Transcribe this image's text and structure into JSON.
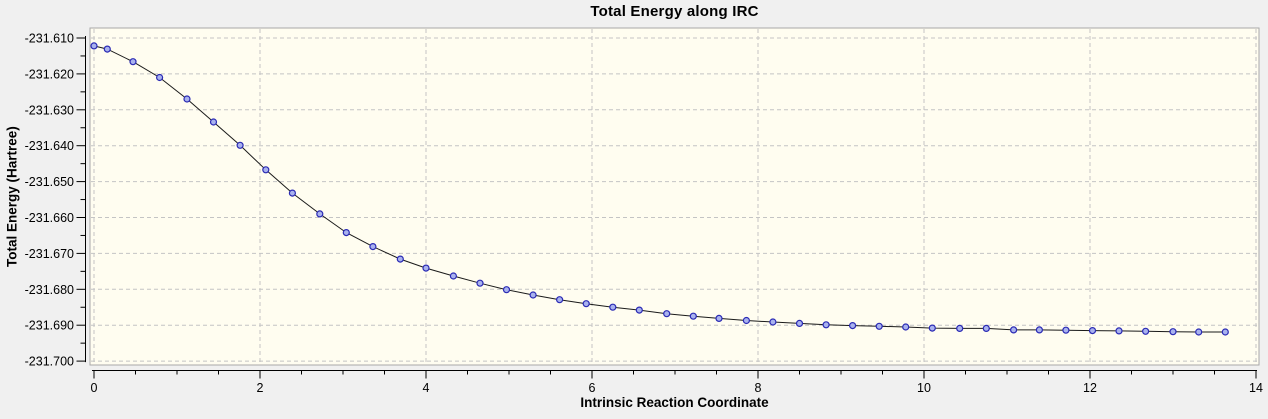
{
  "chart_data": {
    "type": "line",
    "title": "Total Energy along IRC",
    "xlabel": "Intrinsic Reaction Coordinate",
    "ylabel": "Total Energy (Hartree)",
    "x": [
      0.0,
      0.16,
      0.47,
      0.79,
      1.12,
      1.44,
      1.76,
      2.07,
      2.39,
      2.72,
      3.04,
      3.36,
      3.69,
      4.0,
      4.33,
      4.65,
      4.97,
      5.29,
      5.61,
      5.93,
      6.25,
      6.57,
      6.9,
      7.22,
      7.53,
      7.86,
      8.18,
      8.5,
      8.82,
      9.14,
      9.46,
      9.78,
      10.1,
      10.43,
      10.75,
      11.08,
      11.39,
      11.71,
      12.03,
      12.35,
      12.67,
      13.0,
      13.31,
      13.63
    ],
    "y": [
      -231.6122,
      -231.6131,
      -231.6166,
      -231.621,
      -231.627,
      -231.6334,
      -231.6399,
      -231.6467,
      -231.6532,
      -231.659,
      -231.6642,
      -231.6681,
      -231.6716,
      -231.6741,
      -231.6763,
      -231.6783,
      -231.6801,
      -231.6816,
      -231.6829,
      -231.684,
      -231.685,
      -231.6858,
      -231.6868,
      -231.6875,
      -231.6881,
      -231.6887,
      -231.6891,
      -231.6895,
      -231.6899,
      -231.6901,
      -231.6903,
      -231.6905,
      -231.6908,
      -231.6909,
      -231.6909,
      -231.6913,
      -231.6913,
      -231.6914,
      -231.6915,
      -231.6916,
      -231.6917,
      -231.6918,
      -231.6919,
      -231.6919
    ],
    "x_axis": {
      "min": 0,
      "max": 14,
      "major_tick_values": [
        0,
        2,
        4,
        6,
        8,
        10,
        12,
        14
      ],
      "major_tick_labels": [
        "0",
        "2",
        "4",
        "6",
        "8",
        "10",
        "12",
        "14"
      ],
      "minor_tick_step": 0.5
    },
    "y_axis": {
      "min": -231.7,
      "max": -231.61,
      "major_tick_values": [
        -231.61,
        -231.62,
        -231.63,
        -231.64,
        -231.65,
        -231.66,
        -231.67,
        -231.68,
        -231.69,
        -231.7
      ],
      "major_tick_labels": [
        "-231.610",
        "-231.620",
        "-231.630",
        "-231.640",
        "-231.650",
        "-231.660",
        "-231.670",
        "-231.680",
        "-231.690",
        "-231.700"
      ],
      "minor_tick_step": 0.005
    },
    "grid": {
      "visible": true,
      "style": "dashed"
    },
    "legend": {
      "visible": false
    },
    "colors": {
      "outer_background": "#f0f0f0",
      "plot_background": "#fffdf0",
      "plot_border": "#a8a8a8",
      "grid_line": "#c4c4c4",
      "series_line": "#1a1a1a",
      "marker_stroke": "#2a2ab4",
      "marker_fill": "#a9b2ee",
      "axis_line": "#000000",
      "text": "#000000"
    }
  }
}
